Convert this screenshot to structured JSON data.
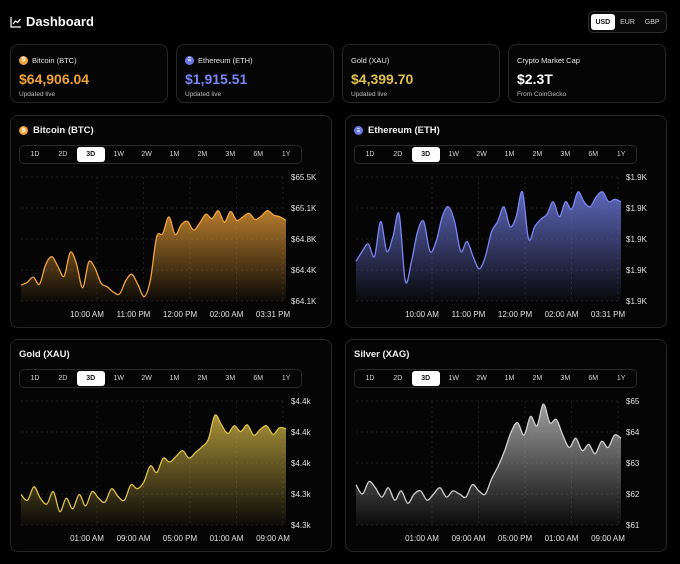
{
  "header": {
    "title": "Dashboard",
    "icon": "line-chart-icon",
    "currencies": [
      "USD",
      "EUR",
      "GBP"
    ],
    "active_currency": "USD"
  },
  "stats": [
    {
      "label": "Bitcoin (BTC)",
      "value": "$64,906.04",
      "sub": "Updated live",
      "color": "#f0a33a",
      "icon_glyph": "₿"
    },
    {
      "label": "Ethereum (ETH)",
      "value": "$1,915.51",
      "sub": "Updated live",
      "color": "#7a86f5",
      "icon_glyph": "Ξ"
    },
    {
      "label": "Gold (XAU)",
      "value": "$4,399.70",
      "sub": "Updated live",
      "color": "#e0c14a",
      "icon_glyph": ""
    },
    {
      "label": "Crypto Market Cap",
      "value": "$2.3T",
      "sub": "From CoinGecko",
      "color": "#ffffff",
      "icon_glyph": ""
    }
  ],
  "ranges": [
    "1D",
    "2D",
    "3D",
    "1W",
    "2W",
    "1M",
    "2M",
    "3M",
    "6M",
    "1Y"
  ],
  "active_range": "3D",
  "charts": [
    {
      "title": "Bitcoin (BTC)",
      "icon_glyph": "₿",
      "color": "#f0a33a",
      "chart_data": {
        "type": "area",
        "x_ticks": [
          "10:00 AM",
          "11:00 PM",
          "12:00 PM",
          "02:00 AM",
          "03:31 PM"
        ],
        "y_ticks": [
          "$65.5K",
          "$65.1K",
          "$64.8K",
          "$64.4K",
          "$64.1K"
        ],
        "ylim": [
          64100,
          65500
        ],
        "values": [
          64280,
          64310,
          64370,
          64290,
          64510,
          64600,
          64490,
          64380,
          64650,
          64520,
          64250,
          64540,
          64470,
          64300,
          64260,
          64200,
          64180,
          64330,
          64400,
          64280,
          64150,
          64340,
          64820,
          64860,
          65050,
          64850,
          64960,
          65000,
          64900,
          64980,
          65080,
          65030,
          65120,
          64990,
          65110,
          65010,
          65050,
          65090,
          65020,
          65060,
          65120,
          65070,
          65050,
          65010
        ]
      }
    },
    {
      "title": "Ethereum (ETH)",
      "icon_glyph": "Ξ",
      "color": "#7a86f5",
      "chart_data": {
        "type": "area",
        "x_ticks": [
          "10:00 AM",
          "11:00 PM",
          "12:00 PM",
          "02:00 AM",
          "03:31 PM"
        ],
        "y_ticks": [
          "$1.9K",
          "$1.9K",
          "$1.9K",
          "$1.9K",
          "$1.9K"
        ],
        "ylim": [
          1880,
          1930
        ],
        "values": [
          1896,
          1900,
          1903,
          1898,
          1912,
          1900,
          1906,
          1915,
          1888,
          1896,
          1908,
          1912,
          1900,
          1904,
          1914,
          1918,
          1912,
          1900,
          1904,
          1898,
          1893,
          1898,
          1908,
          1912,
          1918,
          1910,
          1914,
          1924,
          1905,
          1910,
          1913,
          1915,
          1920,
          1914,
          1920,
          1917,
          1924,
          1920,
          1918,
          1922,
          1924,
          1920,
          1921,
          1920
        ]
      }
    },
    {
      "title": "Gold (XAU)",
      "icon_glyph": "",
      "color": "#e0c14a",
      "chart_data": {
        "type": "area",
        "x_ticks": [
          "01:00 AM",
          "09:00 AM",
          "05:00 PM",
          "01:00 AM",
          "09:00 AM"
        ],
        "y_ticks": [
          "$4.4k",
          "$4.4k",
          "$4.4k",
          "$4.3k",
          "$4.3k"
        ],
        "ylim": [
          4290,
          4420
        ],
        "values": [
          4322,
          4316,
          4330,
          4318,
          4312,
          4325,
          4304,
          4318,
          4307,
          4322,
          4310,
          4325,
          4318,
          4314,
          4328,
          4320,
          4316,
          4332,
          4328,
          4335,
          4352,
          4345,
          4360,
          4356,
          4362,
          4368,
          4360,
          4366,
          4372,
          4380,
          4405,
          4395,
          4386,
          4394,
          4388,
          4395,
          4384,
          4390,
          4394,
          4385,
          4392,
          4391
        ]
      }
    },
    {
      "title": "Silver (XAG)",
      "icon_glyph": "",
      "color": "#cfcfcf",
      "chart_data": {
        "type": "area",
        "x_ticks": [
          "01:00 AM",
          "09:00 AM",
          "05:00 PM",
          "01:00 AM",
          "09:00 AM"
        ],
        "y_ticks": [
          "$65",
          "$64",
          "$63",
          "$62",
          "$61"
        ],
        "ylim": [
          61,
          65
        ],
        "values": [
          62.3,
          62.0,
          62.4,
          62.2,
          61.9,
          62.2,
          61.8,
          62.1,
          61.7,
          62.0,
          62.1,
          61.8,
          62.0,
          62.2,
          61.9,
          62.1,
          62.0,
          61.9,
          62.3,
          62.1,
          62.0,
          62.5,
          62.9,
          63.4,
          64.0,
          64.3,
          63.9,
          64.5,
          64.2,
          64.9,
          64.3,
          64.4,
          63.9,
          63.5,
          63.8,
          63.4,
          63.6,
          63.3,
          63.7,
          63.5,
          63.9,
          63.8
        ]
      }
    }
  ]
}
